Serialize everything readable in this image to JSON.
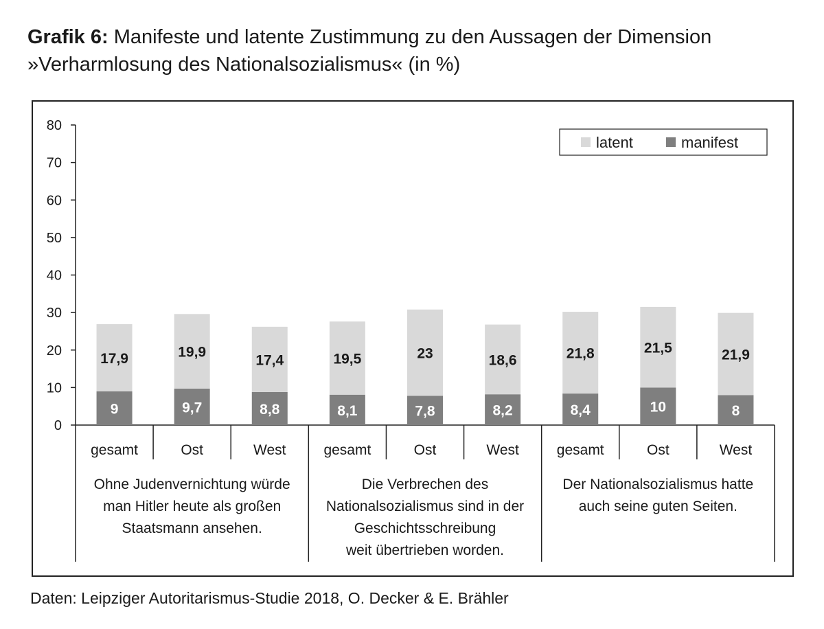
{
  "title": {
    "prefix": "Grafik 6:",
    "line1": "Manifeste und latente Zustimmung zu den Aussagen der Dimension",
    "line2": "»Verharmlosung des Nationalsozialismus« (in %)"
  },
  "source": "Daten: Leipziger Autoritarismus-Studie 2018, O. Decker & E. Brähler",
  "colors": {
    "latent": "#d9d9d9",
    "manifest": "#7f7f7f",
    "axis": "#222222"
  },
  "chart_data": {
    "type": "bar",
    "stacked": true,
    "ylim": [
      0,
      80
    ],
    "yticks": [
      0,
      10,
      20,
      30,
      40,
      50,
      60,
      70,
      80
    ],
    "legend": {
      "position": "top-right",
      "entries": [
        "latent",
        "manifest"
      ]
    },
    "groups": [
      {
        "label_lines": [
          "Ohne Judenvernichtung würde",
          "man Hitler heute als großen",
          "Staatsmann ansehen."
        ],
        "categories": [
          "gesamt",
          "Ost",
          "West"
        ]
      },
      {
        "label_lines": [
          "Die Verbrechen des",
          "Nationalsozialismus sind in der",
          "Geschichtsschreibung",
          "weit übertrieben worden."
        ],
        "categories": [
          "gesamt",
          "Ost",
          "West"
        ]
      },
      {
        "label_lines": [
          "Der Nationalsozialismus hatte",
          "auch seine guten Seiten."
        ],
        "categories": [
          "gesamt",
          "Ost",
          "West"
        ]
      }
    ],
    "categories": [
      "gesamt",
      "Ost",
      "West",
      "gesamt",
      "Ost",
      "West",
      "gesamt",
      "Ost",
      "West"
    ],
    "series": [
      {
        "name": "manifest",
        "values": [
          9,
          9.7,
          8.8,
          8.1,
          7.8,
          8.2,
          8.4,
          10,
          8
        ],
        "labels": [
          "9",
          "9,7",
          "8,8",
          "8,1",
          "7,8",
          "8,2",
          "8,4",
          "10",
          "8"
        ]
      },
      {
        "name": "latent",
        "values": [
          17.9,
          19.9,
          17.4,
          19.5,
          23,
          18.6,
          21.8,
          21.5,
          21.9
        ],
        "labels": [
          "17,9",
          "19,9",
          "17,4",
          "19,5",
          "23",
          "18,6",
          "21,8",
          "21,5",
          "21,9"
        ]
      }
    ]
  }
}
